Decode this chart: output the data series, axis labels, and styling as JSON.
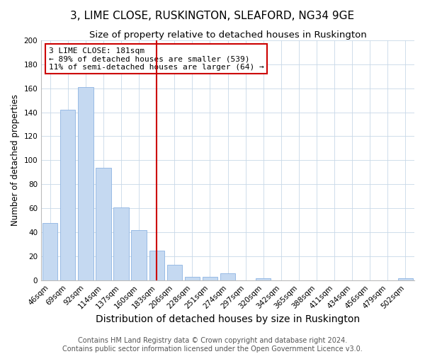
{
  "title": "3, LIME CLOSE, RUSKINGTON, SLEAFORD, NG34 9GE",
  "subtitle": "Size of property relative to detached houses in Ruskington",
  "xlabel": "Distribution of detached houses by size in Ruskington",
  "ylabel": "Number of detached properties",
  "bar_labels": [
    "46sqm",
    "69sqm",
    "92sqm",
    "114sqm",
    "137sqm",
    "160sqm",
    "183sqm",
    "206sqm",
    "228sqm",
    "251sqm",
    "274sqm",
    "297sqm",
    "320sqm",
    "342sqm",
    "365sqm",
    "388sqm",
    "411sqm",
    "434sqm",
    "456sqm",
    "479sqm",
    "502sqm"
  ],
  "bar_values": [
    48,
    142,
    161,
    94,
    61,
    42,
    25,
    13,
    3,
    3,
    6,
    0,
    2,
    0,
    0,
    0,
    0,
    0,
    0,
    0,
    2
  ],
  "bar_color": "#c5d9f1",
  "bar_edge_color": "#8db4e2",
  "vline_x_index": 6,
  "vline_color": "#cc0000",
  "annotation_title": "3 LIME CLOSE: 181sqm",
  "annotation_line1": "← 89% of detached houses are smaller (539)",
  "annotation_line2": "11% of semi-detached houses are larger (64) →",
  "annotation_box_color": "#ffffff",
  "annotation_box_edge": "#cc0000",
  "ylim": [
    0,
    200
  ],
  "yticks": [
    0,
    20,
    40,
    60,
    80,
    100,
    120,
    140,
    160,
    180,
    200
  ],
  "footer1": "Contains HM Land Registry data © Crown copyright and database right 2024.",
  "footer2": "Contains public sector information licensed under the Open Government Licence v3.0.",
  "background_color": "#ffffff",
  "grid_color": "#c8d8e8",
  "title_fontsize": 11,
  "subtitle_fontsize": 9.5,
  "xlabel_fontsize": 10,
  "ylabel_fontsize": 8.5,
  "tick_fontsize": 7.5,
  "annotation_fontsize": 8,
  "footer_fontsize": 7
}
